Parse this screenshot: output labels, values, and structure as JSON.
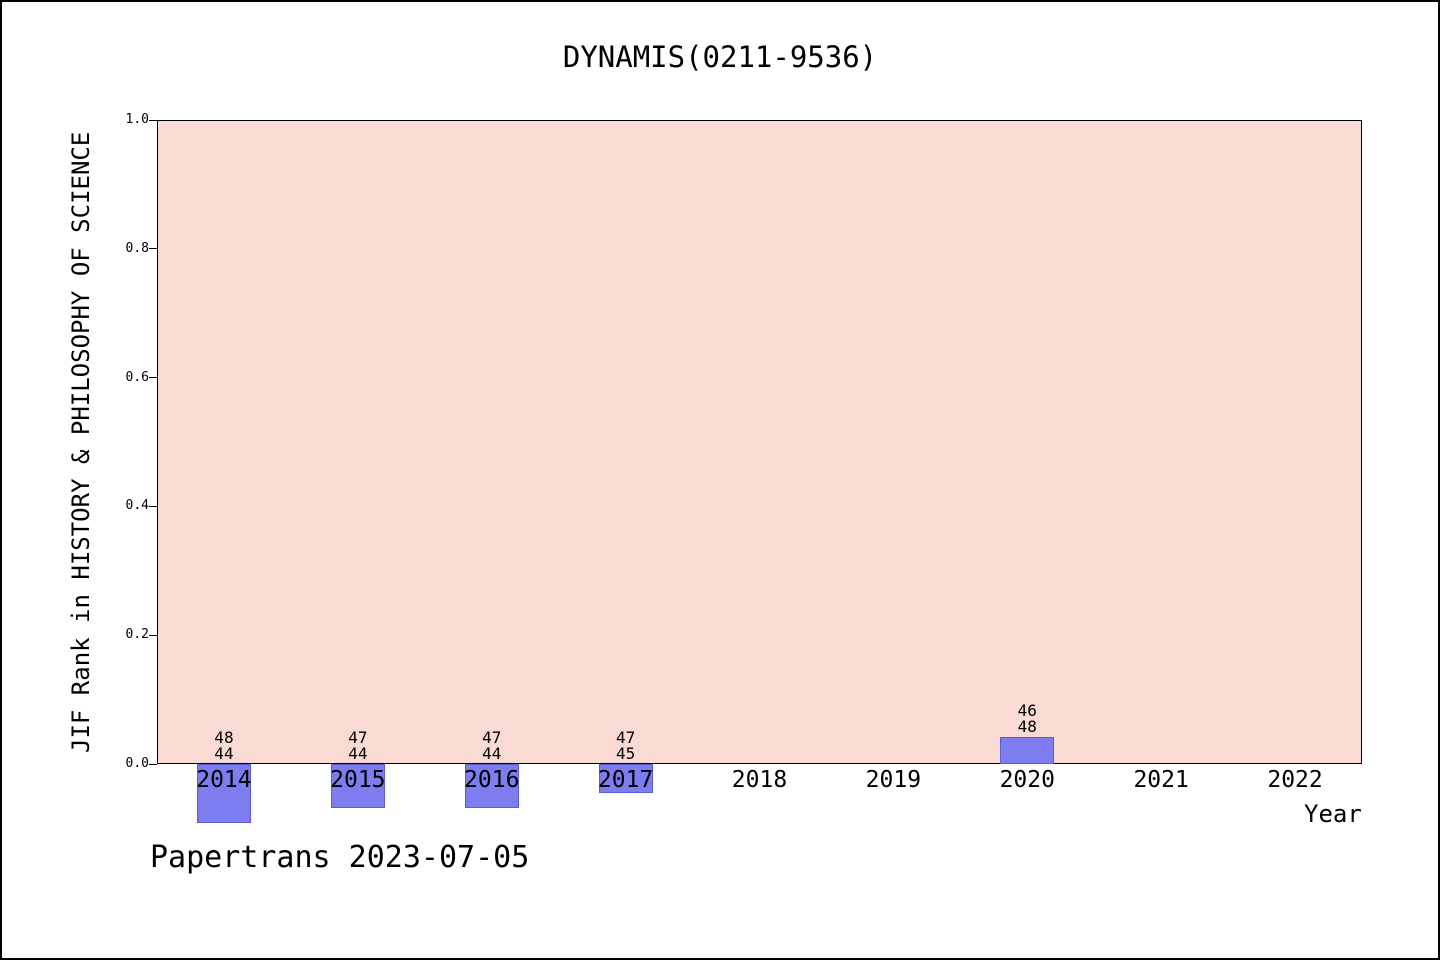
{
  "page": {
    "footer": "Papertrans 2023-07-05"
  },
  "chart_data": {
    "type": "bar",
    "title": "DYNAMIS(0211-9536)",
    "xlabel": "Year",
    "ylabel": "JIF Rank in HISTORY & PHILOSOPHY OF SCIENCE",
    "categories": [
      "2014",
      "2015",
      "2016",
      "2017",
      "2018",
      "2019",
      "2020",
      "2021",
      "2022"
    ],
    "yticks": [
      0.0,
      0.2,
      0.4,
      0.6,
      0.8,
      1.0
    ],
    "ylim": [
      0,
      1
    ],
    "grid": false,
    "legend": "none",
    "plot_bg_color": "#fadbd3",
    "bar_color": "#7d7df0",
    "bar_edge_color": "#5c5cd6",
    "bars": [
      {
        "year": "2014",
        "label_top": "48",
        "label_bottom": "44",
        "rank": 48,
        "total": 44,
        "value": -0.0909
      },
      {
        "year": "2015",
        "label_top": "47",
        "label_bottom": "44",
        "rank": 47,
        "total": 44,
        "value": -0.0682
      },
      {
        "year": "2016",
        "label_top": "47",
        "label_bottom": "44",
        "rank": 47,
        "total": 44,
        "value": -0.0682
      },
      {
        "year": "2017",
        "label_top": "47",
        "label_bottom": "45",
        "rank": 47,
        "total": 45,
        "value": -0.0444
      },
      {
        "year": "2020",
        "label_top": "46",
        "label_bottom": "48",
        "rank": 46,
        "total": 48,
        "value": 0.0417
      }
    ]
  }
}
